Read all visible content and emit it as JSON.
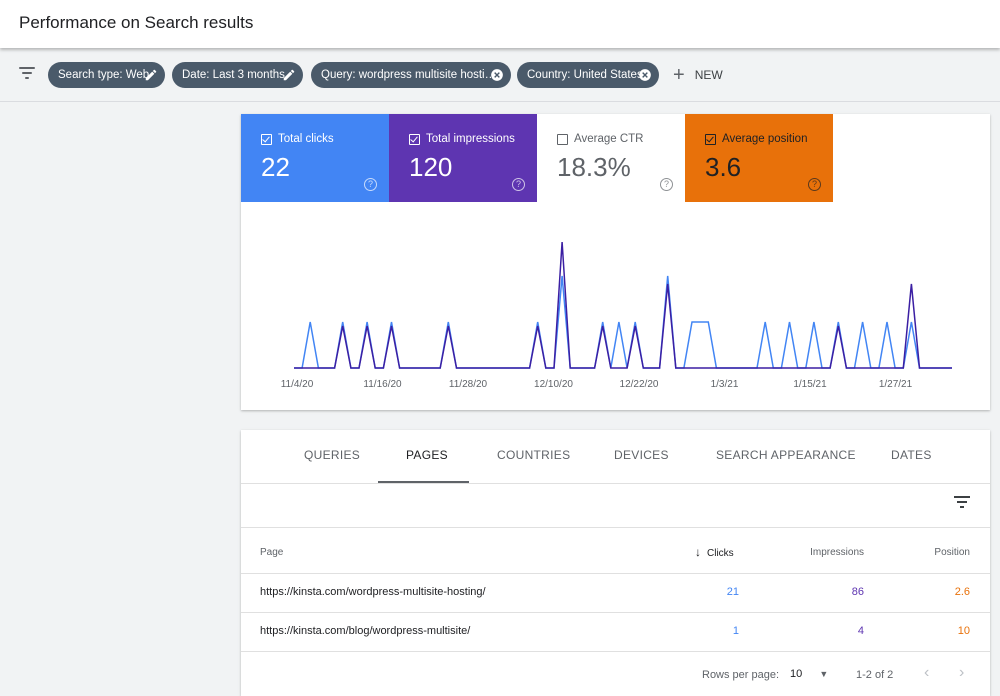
{
  "header": {
    "title": "Performance on Search results"
  },
  "filters": {
    "chips": [
      {
        "label": "Search type: Web",
        "action": "edit"
      },
      {
        "label": "Date: Last 3 months",
        "action": "edit"
      },
      {
        "label": "Query: wordpress multisite hosti…",
        "action": "remove"
      },
      {
        "label": "Country: United States",
        "action": "remove"
      }
    ],
    "new_label": "NEW"
  },
  "metrics": [
    {
      "label": "Total clicks",
      "value": "22",
      "checked": true,
      "bg": "#4285f4",
      "fg": "#ffffff"
    },
    {
      "label": "Total impressions",
      "value": "120",
      "checked": true,
      "bg": "#5e35b1",
      "fg": "#ffffff"
    },
    {
      "label": "Average CTR",
      "value": "18.3%",
      "checked": false,
      "bg": "#ffffff",
      "fg": "#5f6368"
    },
    {
      "label": "Average position",
      "value": "3.6",
      "checked": true,
      "bg": "#e8710a",
      "fg": "#202124"
    }
  ],
  "chart_data": {
    "type": "line",
    "x_tick_labels": [
      "11/4/20",
      "11/16/20",
      "11/28/20",
      "12/10/20",
      "12/22/20",
      "1/3/21",
      "1/15/21",
      "1/27/21"
    ],
    "series": [
      {
        "name": "Total clicks",
        "color": "#4285f4",
        "values": [
          0,
          0,
          1,
          0,
          0,
          0,
          1,
          0,
          0,
          1,
          0,
          0,
          1,
          0,
          0,
          0,
          0,
          0,
          0,
          1,
          0,
          0,
          0,
          0,
          0,
          0,
          0,
          0,
          0,
          0,
          1,
          0,
          0,
          2,
          0,
          0,
          0,
          0,
          1,
          0,
          1,
          0,
          1,
          0,
          0,
          0,
          2,
          0,
          0,
          1,
          1,
          1,
          0,
          0,
          0,
          0,
          0,
          0,
          1,
          0,
          0,
          1,
          0,
          0,
          1,
          0,
          0,
          1,
          0,
          0,
          1,
          0,
          0,
          1,
          0,
          0,
          1,
          0,
          0,
          0,
          0,
          0
        ]
      },
      {
        "name": "Total impressions",
        "color": "#3b1fa3",
        "values": [
          0,
          0,
          0,
          0,
          0,
          0,
          1,
          0,
          0,
          1,
          0,
          0,
          1,
          0,
          0,
          0,
          0,
          0,
          0,
          1,
          0,
          0,
          0,
          0,
          0,
          0,
          0,
          0,
          0,
          0,
          1,
          0,
          0,
          3,
          0,
          0,
          0,
          0,
          1,
          0,
          0,
          0,
          1,
          0,
          0,
          0,
          2,
          0,
          0,
          0,
          0,
          0,
          0,
          0,
          0,
          0,
          0,
          0,
          0,
          0,
          0,
          0,
          0,
          0,
          0,
          0,
          0,
          1,
          0,
          0,
          0,
          0,
          0,
          0,
          0,
          0,
          2,
          0,
          0,
          0,
          0,
          0
        ]
      }
    ]
  },
  "table": {
    "tabs": [
      "QUERIES",
      "PAGES",
      "COUNTRIES",
      "DEVICES",
      "SEARCH APPEARANCE",
      "DATES"
    ],
    "active_tab": "PAGES",
    "columns": {
      "page": "Page",
      "clicks": "Clicks",
      "impressions": "Impressions",
      "position": "Position"
    },
    "rows": [
      {
        "page": "https://kinsta.com/wordpress-multisite-hosting/",
        "clicks": "21",
        "impressions": "86",
        "position": "2.6"
      },
      {
        "page": "https://kinsta.com/blog/wordpress-multisite/",
        "clicks": "1",
        "impressions": "4",
        "position": "10"
      }
    ],
    "pagination": {
      "rows_per_page_label": "Rows per page:",
      "rows_per_page": "10",
      "range": "1-2 of 2"
    }
  },
  "colors": {
    "clicks": "#4285f4",
    "impressions": "#5e35b1",
    "position": "#e8710a"
  }
}
